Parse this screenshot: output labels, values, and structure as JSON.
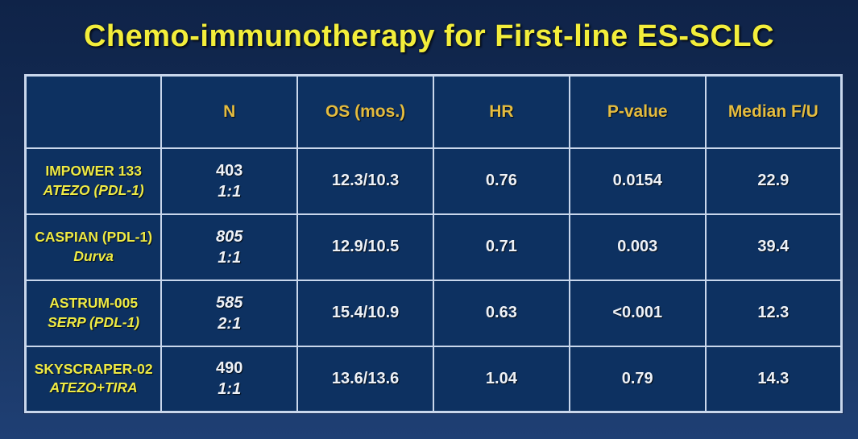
{
  "title": "Chemo-immunotherapy for First-line ES-SCLC",
  "colors": {
    "background_navy": "#142e58",
    "cell_navy": "#0d3161",
    "border_light": "#c9d7ec",
    "title_yellow": "#f3ee3b",
    "header_gold": "#e4bc3f",
    "study_yellow": "#eeea45",
    "value_white": "#eef2f8"
  },
  "table": {
    "columns": [
      "",
      "N",
      "OS (mos.)",
      "HR",
      "P-value",
      "Median F/U"
    ],
    "rows": [
      {
        "study_line1": "IMPOWER 133",
        "study_line2": "ATEZO (PDL-1)",
        "n": "403",
        "ratio": "1:1",
        "os": "12.3/10.3",
        "hr": "0.76",
        "p_value": "0.0154",
        "median_fu": "22.9"
      },
      {
        "study_line1": "CASPIAN (PDL-1)",
        "study_line2": "Durva",
        "n": "805",
        "ratio": "1:1",
        "os": "12.9/10.5",
        "hr": "0.71",
        "p_value": "0.003",
        "median_fu": "39.4"
      },
      {
        "study_line1": "ASTRUM-005",
        "study_line2": "SERP (PDL-1)",
        "n": "585",
        "ratio": "2:1",
        "os": "15.4/10.9",
        "hr": "0.63",
        "p_value": "<0.001",
        "median_fu": "12.3"
      },
      {
        "study_line1": "SKYSCRAPER-02",
        "study_line2": "ATEZO+TIRA",
        "n": "490",
        "ratio": "1:1",
        "os": "13.6/13.6",
        "hr": "1.04",
        "p_value": "0.79",
        "median_fu": "14.3"
      }
    ]
  }
}
